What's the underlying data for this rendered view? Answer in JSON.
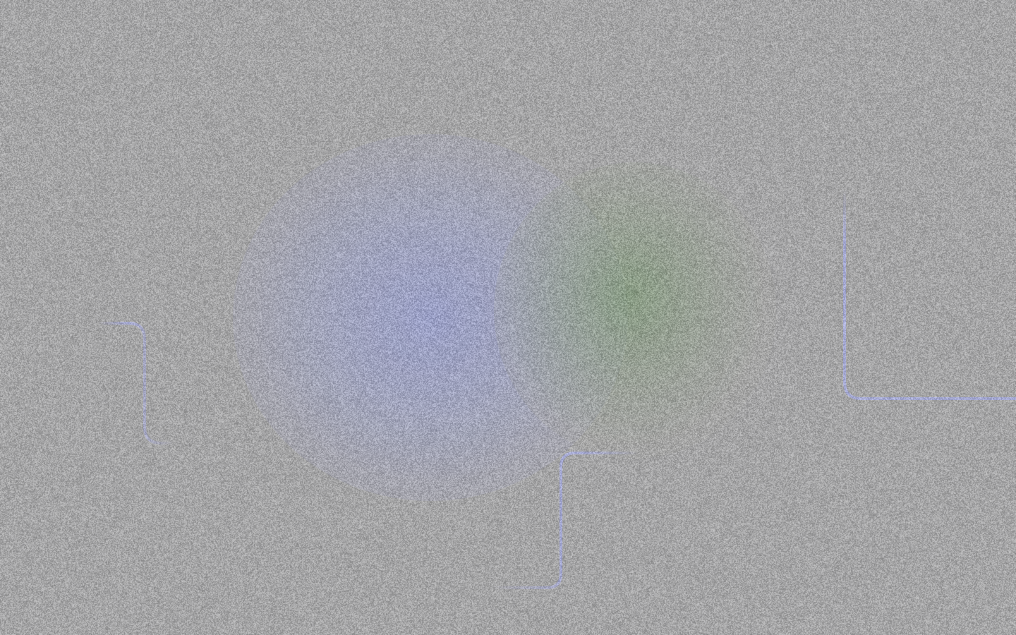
{
  "background": {
    "base_color": "#b3b3b5",
    "style": "grainy-noise",
    "accent_line_color": "#b4b9f2",
    "blob_colors": {
      "blue": "#a0aaf0",
      "green": "#82a578"
    }
  },
  "decorations": {
    "shapes": [
      "bracket-left",
      "vertical-bar",
      "bracket-bottom-center",
      "bracket-right"
    ]
  }
}
